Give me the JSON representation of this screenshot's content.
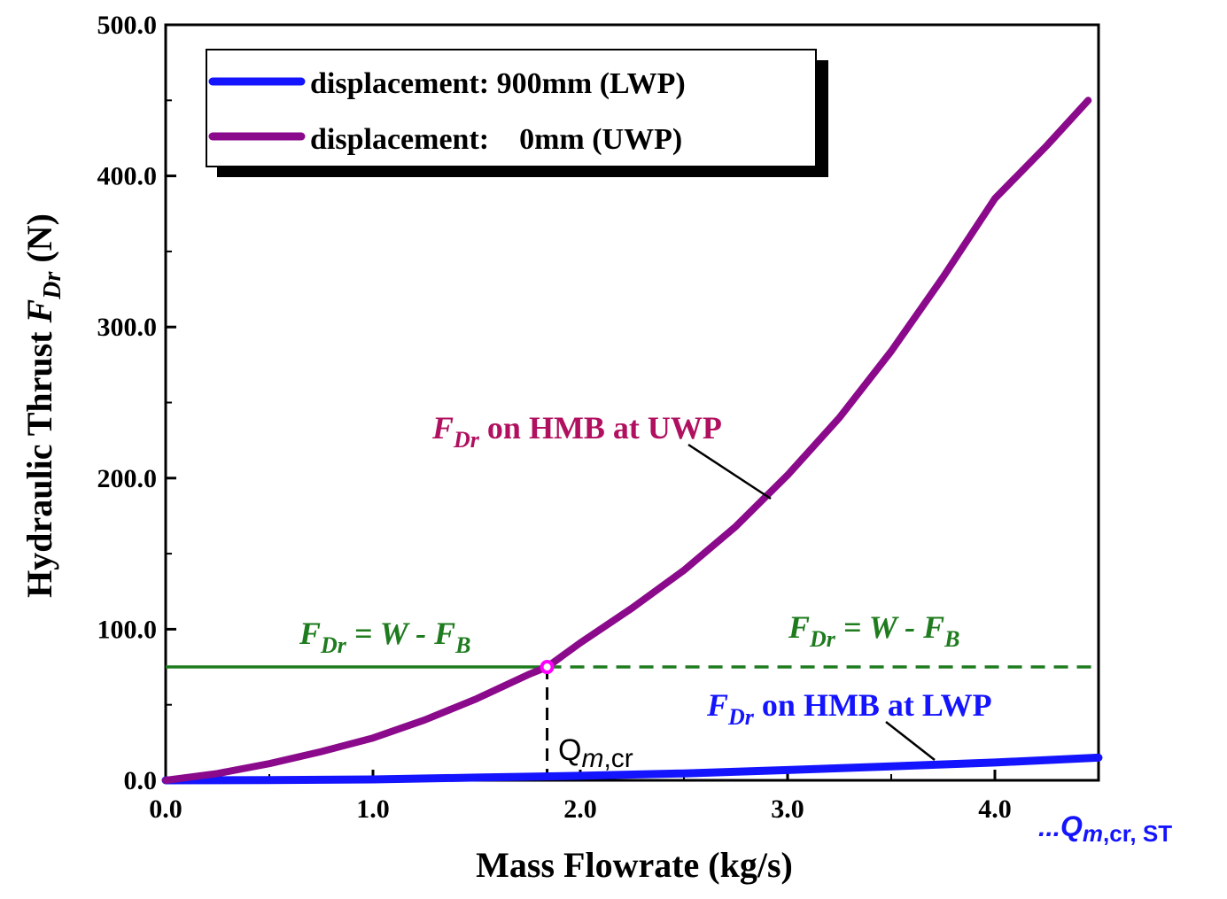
{
  "chart_data": {
    "type": "line",
    "xlabel": "Mass Flowrate (kg/s)",
    "ylabel_parts": {
      "prefix": "Hydraulic Thrust ",
      "symbol": "F",
      "sub": "Dr",
      "unit": " (N)"
    },
    "xlim": [
      0,
      4.5
    ],
    "ylim": [
      0,
      500
    ],
    "x_ticks": [
      0,
      1,
      2,
      3,
      4
    ],
    "x_tick_labels": [
      "0.0",
      "1.0",
      "2.0",
      "3.0",
      "4.0"
    ],
    "y_ticks": [
      0,
      100,
      200,
      300,
      400,
      500
    ],
    "y_tick_labels": [
      "0.0",
      "100.0",
      "200.0",
      "300.0",
      "400.0",
      "500.0"
    ],
    "series": [
      {
        "name": "displacement: 900mm (LWP)",
        "color": "#1414ff",
        "x": [
          0,
          0.5,
          1.0,
          1.5,
          2.0,
          2.5,
          3.0,
          3.5,
          4.0,
          4.5
        ],
        "y": [
          0,
          0.1,
          0.6,
          1.8,
          3.0,
          4.6,
          6.8,
          9.2,
          11.8,
          15.0
        ]
      },
      {
        "name": "displacement:    0mm (UWP)",
        "color": "#8b0a8b",
        "x": [
          0,
          0.25,
          0.5,
          0.75,
          1.0,
          1.25,
          1.5,
          1.75,
          1.84,
          2.0,
          2.25,
          2.5,
          2.75,
          3.0,
          3.25,
          3.5,
          3.75,
          4.0,
          4.25,
          4.45
        ],
        "y": [
          0,
          4.5,
          11,
          19,
          28,
          40,
          54,
          70,
          75,
          91,
          114,
          139,
          168,
          202,
          240,
          284,
          333,
          385,
          420,
          450
        ]
      }
    ],
    "threshold": {
      "y": 75,
      "x_cross": 1.84,
      "color": "#1e7b1e",
      "marker_color": "#ff00ff"
    },
    "annotations": {
      "uwp_label": {
        "symbol": "F",
        "sub": "Dr",
        "text": " on HMB at UWP",
        "color": "#b0105f"
      },
      "lwp_label": {
        "symbol": "F",
        "sub": "Dr",
        "text": " on HMB at LWP",
        "color": "#1414ff"
      },
      "threshold_label": {
        "lhs": "F",
        "lhs_sub": "Dr",
        "eq": " = ",
        "w": "W",
        "minus": " - ",
        "fb": "F",
        "fb_sub": "B"
      },
      "qmcr_label": {
        "q": "Q",
        "m": "m",
        "rest": ",cr"
      },
      "qmcr_st_label": {
        "prefix": "...",
        "q": "Q",
        "m": "m",
        "rest": ",cr, ST"
      }
    }
  }
}
